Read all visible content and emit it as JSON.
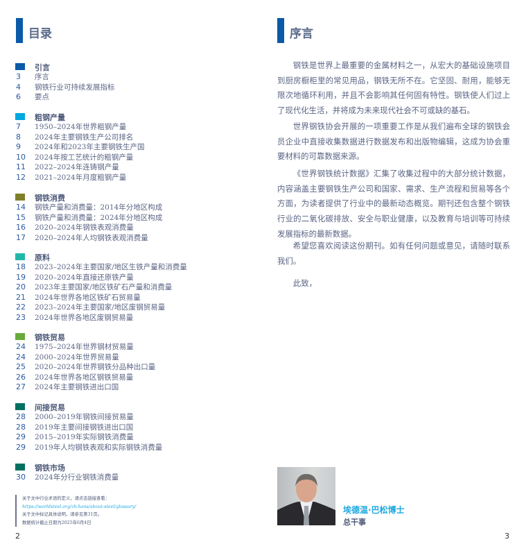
{
  "left_page": {
    "title": "目录",
    "sections": [
      {
        "heading": "引言",
        "color": "#0a5aa8",
        "items": [
          {
            "page": "3",
            "label": "序言"
          },
          {
            "page": "4",
            "label": "钢铁行业可持续发展指标"
          },
          {
            "page": "6",
            "label": "要点"
          }
        ]
      },
      {
        "heading": "粗钢产量",
        "color": "#00a8e0",
        "items": [
          {
            "page": "7",
            "label": "1950–2024年世界粗钢产量"
          },
          {
            "page": "8",
            "label": "2024年主要钢铁生产公司排名"
          },
          {
            "page": "9",
            "label": "2024年和2023年主要钢铁生产国"
          },
          {
            "page": "10",
            "label": "2024年按工艺统计的粗钢产量"
          },
          {
            "page": "11",
            "label": "2022–2024年连铸钢产量"
          },
          {
            "page": "12",
            "label": "2021–2024年月度粗钢产量"
          }
        ]
      },
      {
        "heading": "钢铁消费",
        "color": "#7f7f2a",
        "items": [
          {
            "page": "14",
            "label": "钢铁产量和消费量：2014年分地区构成"
          },
          {
            "page": "15",
            "label": "钢铁产量和消费量：2024年分地区构成"
          },
          {
            "page": "16",
            "label": "2020–2024年钢铁表观消费量"
          },
          {
            "page": "17",
            "label": "2020–2024年人均钢铁表观消费量"
          }
        ]
      },
      {
        "heading": "原料",
        "color": "#22b8a8",
        "items": [
          {
            "page": "18",
            "label": "2023–2024年主要国家/地区生铁产量和消费量"
          },
          {
            "page": "19",
            "label": "2020–2024年直接还原铁产量"
          },
          {
            "page": "20",
            "label": "2023年主要国家/地区铁矿石产量和消费量"
          },
          {
            "page": "21",
            "label": "2024年世界各地区铁矿石贸易量"
          },
          {
            "page": "22",
            "label": "2023–2024年主要国家/地区废钢贸易量"
          },
          {
            "page": "23",
            "label": "2024年世界各地区废钢贸易量"
          }
        ]
      },
      {
        "heading": "钢铁贸易",
        "color": "#6aaa3a",
        "items": [
          {
            "page": "24",
            "label": "1975–2024年世界钢材贸易量"
          },
          {
            "page": "24",
            "label": "2000–2024年世界贸易量"
          },
          {
            "page": "25",
            "label": "2020–2024年世界钢铁分品种出口量"
          },
          {
            "page": "26",
            "label": "2024年世界各地区钢铁贸易量"
          },
          {
            "page": "27",
            "label": "2024年主要钢铁进出口国"
          }
        ]
      },
      {
        "heading": "间接贸易",
        "color": "#007060",
        "items": [
          {
            "page": "28",
            "label": "2000–2019年钢铁间接贸易量"
          },
          {
            "page": "28",
            "label": "2019年主要间接钢铁进出口国"
          },
          {
            "page": "29",
            "label": "2015–2019年实际钢铁消费量"
          },
          {
            "page": "29",
            "label": "2019年人均钢铁表观和实际钢铁消费量"
          }
        ]
      },
      {
        "heading": "钢铁市场",
        "color": "#007060",
        "items": [
          {
            "page": "30",
            "label": "2024年分行业钢铁消费量"
          }
        ]
      }
    ],
    "footnote": {
      "line1": "关于文中行业术语的定义，请点击链接查看：",
      "link": "https://worldsteel.org/zh-hans/about-steel/glossary/",
      "line2": "关于文中标记具体说明，请参见第31页。",
      "line3": "数据统计截止日期为2025年6月4日"
    },
    "page_number": "2"
  },
  "right_page": {
    "title": "序言",
    "paragraphs": [
      "钢铁是世界上最重要的金属材料之一，从宏大的基础设施项目到厨房橱柜里的常见用品，钢铁无所不在。它坚固、耐用，能够无限次地循环利用，并且不会影响其任何固有特性。钢铁使人们过上了现代化生活，并将成为未来现代社会不可或缺的基石。",
      "世界钢铁协会开展的一项重要工作是从我们遍布全球的钢铁会员企业中直接收集数据进行数据发布和出版物编辑，这成为协会重要材料的可靠数据来源。",
      "《世界钢铁统计数据》汇集了收集过程中的大部分统计数据，内容涵盖主要钢铁生产公司和国家、需求、生产流程和贸易等各个方面，为读者提供了行业中的最新动态概览。期刊还包含整个钢铁行业的二氧化碳排放、安全与职业健康，以及教育与培训等可持续发展指标的最新数据。",
      "希望您喜欢阅读这份期刊。如有任何问题或意见，请随时联系我们。",
      "此致，"
    ],
    "signatory": {
      "name": "埃德温·巴松博士",
      "role": "总干事"
    },
    "page_number": "3",
    "accent_color": "#0a5aa8"
  }
}
